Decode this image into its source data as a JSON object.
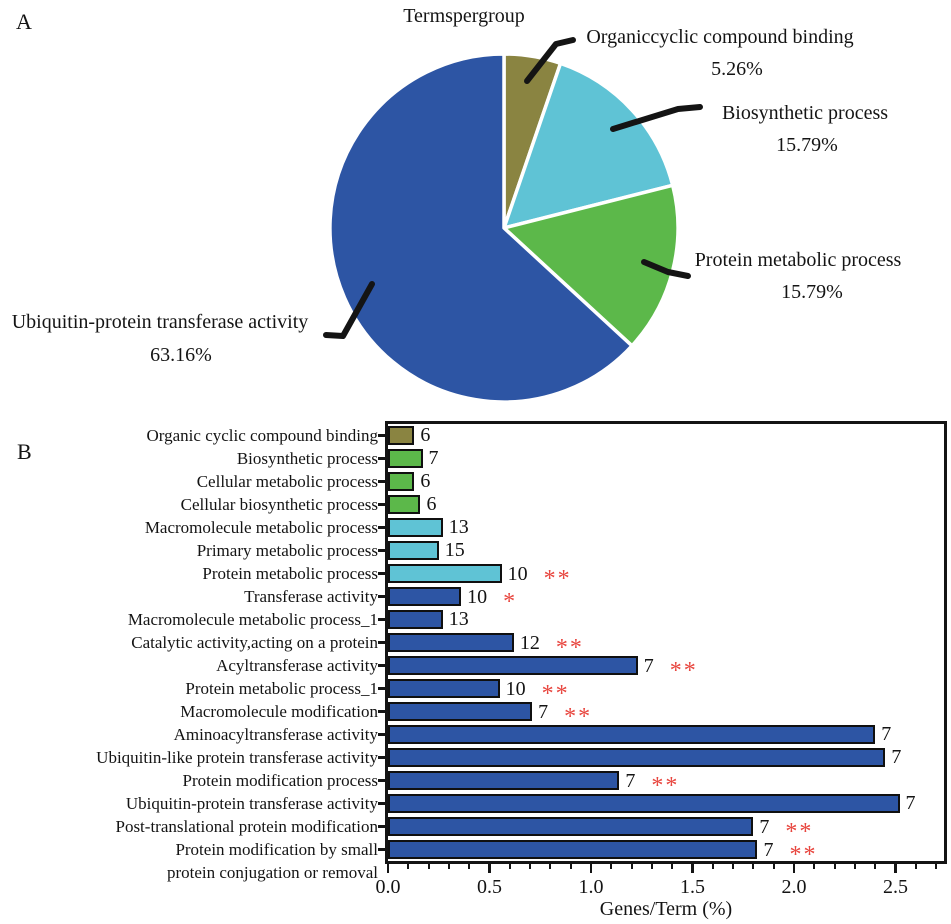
{
  "figure": {
    "panel_a": "A",
    "panel_b": "B"
  },
  "style": {
    "sig_color": "#e8463f",
    "outline_color": "#141414"
  },
  "chart_data": [
    {
      "type": "pie",
      "title": "Termspergroup",
      "legend_position": "none",
      "start_at": "12-oclock-clockwise",
      "slices": [
        {
          "label": "Organiccyclic compound binding",
          "pct_label": "5.26%",
          "value": 5.26,
          "color": "#8a8441"
        },
        {
          "label": "Biosynthetic process",
          "pct_label": "15.79%",
          "value": 15.79,
          "color": "#5fc3d5"
        },
        {
          "label": "Protein metabolic process",
          "pct_label": "15.79%",
          "value": 15.79,
          "color": "#5cb84a"
        },
        {
          "label": "Ubiquitin-protein transferase activity",
          "pct_label": "63.16%",
          "value": 63.16,
          "color": "#2d55a4"
        }
      ]
    },
    {
      "type": "bar",
      "orientation": "horizontal",
      "xlabel": "Genes/Term (%)",
      "xlim": [
        0,
        2.76
      ],
      "grid": false,
      "x_major_ticks": [
        0,
        0.5,
        1.0,
        1.5,
        2.0,
        2.5
      ],
      "x_tick_labels": [
        "0.0",
        "0.5",
        "1.0",
        "1.5",
        "2.0",
        "2.5"
      ],
      "x_minor_tick_step": 0.1,
      "bars": [
        {
          "label": "Organic cyclic compound binding",
          "value": 0.13,
          "genes": "6",
          "color": "#8a8441",
          "sig": ""
        },
        {
          "label": "Biosynthetic process",
          "value": 0.17,
          "genes": "7",
          "color": "#5cb84a",
          "sig": ""
        },
        {
          "label": "Cellular metabolic process",
          "value": 0.13,
          "genes": "6",
          "color": "#5cb84a",
          "sig": ""
        },
        {
          "label": "Cellular biosynthetic process",
          "value": 0.16,
          "genes": "6",
          "color": "#5cb84a",
          "sig": ""
        },
        {
          "label": "Macromolecule metabolic process",
          "value": 0.27,
          "genes": "13",
          "color": "#5fc3d5",
          "sig": ""
        },
        {
          "label": "Primary metabolic process",
          "value": 0.25,
          "genes": "15",
          "color": "#5fc3d5",
          "sig": ""
        },
        {
          "label": "Protein metabolic process",
          "value": 0.56,
          "genes": "10",
          "color": "#5fc3d5",
          "sig": "**"
        },
        {
          "label": "Transferase activity",
          "value": 0.36,
          "genes": "10",
          "color": "#2d55a4",
          "sig": "*"
        },
        {
          "label": "Macromolecule metabolic process_1",
          "value": 0.27,
          "genes": "13",
          "color": "#2d55a4",
          "sig": ""
        },
        {
          "label": "Catalytic activity,acting on a protein",
          "value": 0.62,
          "genes": "12",
          "color": "#2d55a4",
          "sig": "**"
        },
        {
          "label": "Acyltransferase activity",
          "value": 1.23,
          "genes": "7",
          "color": "#2d55a4",
          "sig": "**"
        },
        {
          "label": "Protein metabolic process_1",
          "value": 0.55,
          "genes": "10",
          "color": "#2d55a4",
          "sig": "**"
        },
        {
          "label": "Macromolecule modification",
          "value": 0.71,
          "genes": "7",
          "color": "#2d55a4",
          "sig": "**"
        },
        {
          "label": "Aminoacyltransferase activity",
          "value": 2.4,
          "genes": "7",
          "color": "#2d55a4",
          "sig": ""
        },
        {
          "label": "Ubiquitin-like protein transferase activity",
          "value": 2.45,
          "genes": "7",
          "color": "#2d55a4",
          "sig": ""
        },
        {
          "label": "Protein modification process",
          "value": 1.14,
          "genes": "7",
          "color": "#2d55a4",
          "sig": "**"
        },
        {
          "label": "Ubiquitin-protein transferase activity",
          "value": 2.52,
          "genes": "7",
          "color": "#2d55a4",
          "sig": ""
        },
        {
          "label": "Post-translational protein modification",
          "value": 1.8,
          "genes": "7",
          "color": "#2d55a4",
          "sig": "**"
        },
        {
          "label": "Protein modification by small",
          "label_line2": "protein conjugation or removal",
          "value": 1.82,
          "genes": "7",
          "color": "#2d55a4",
          "sig": "**"
        }
      ]
    }
  ]
}
